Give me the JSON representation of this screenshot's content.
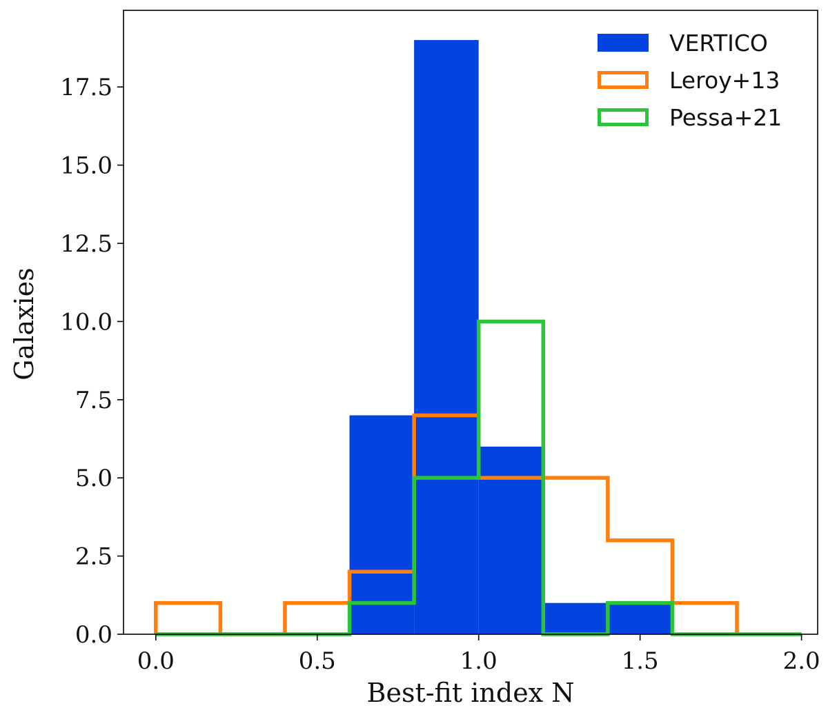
{
  "chart_data": {
    "type": "histogram",
    "title": "",
    "xlabel": "Best-fit index N",
    "ylabel": "Galaxies",
    "xlim": [
      -0.1,
      2.05
    ],
    "ylim": [
      0,
      19.95
    ],
    "xticks": [
      0.0,
      0.5,
      1.0,
      1.5,
      2.0
    ],
    "xtick_labels": [
      "0.0",
      "0.5",
      "1.0",
      "1.5",
      "2.0"
    ],
    "yticks": [
      0.0,
      2.5,
      5.0,
      7.5,
      10.0,
      12.5,
      15.0,
      17.5
    ],
    "ytick_labels": [
      "0.0",
      "2.5",
      "5.0",
      "7.5",
      "10.0",
      "12.5",
      "15.0",
      "17.5"
    ],
    "bin_edges": [
      0.0,
      0.2,
      0.4,
      0.6,
      0.8,
      1.0,
      1.2,
      1.4,
      1.6,
      1.8,
      2.0
    ],
    "legend_position": "top-right",
    "series": [
      {
        "name": "VERTICO",
        "style": "filled",
        "color": "#0343df",
        "bin_edges": [
          0.6,
          0.8,
          1.0,
          1.2,
          1.4,
          1.6
        ],
        "counts": [
          7,
          19,
          6,
          1,
          1
        ]
      },
      {
        "name": "Leroy+13",
        "style": "step",
        "color": "#ff7f0e",
        "bin_edges": [
          0.0,
          0.2,
          0.4,
          0.6,
          0.8,
          1.0,
          1.2,
          1.4,
          1.6,
          1.8
        ],
        "counts": [
          1,
          0,
          1,
          2,
          7,
          5,
          5,
          3,
          1
        ]
      },
      {
        "name": "Pessa+21",
        "style": "step",
        "color": "#2bc53a",
        "bin_edges": [
          0.0,
          0.2,
          0.4,
          0.6,
          0.8,
          1.0,
          1.2,
          1.4,
          1.6,
          1.8,
          2.0
        ],
        "counts": [
          0,
          0,
          0,
          1,
          5,
          10,
          0,
          1,
          0,
          0
        ]
      }
    ]
  }
}
